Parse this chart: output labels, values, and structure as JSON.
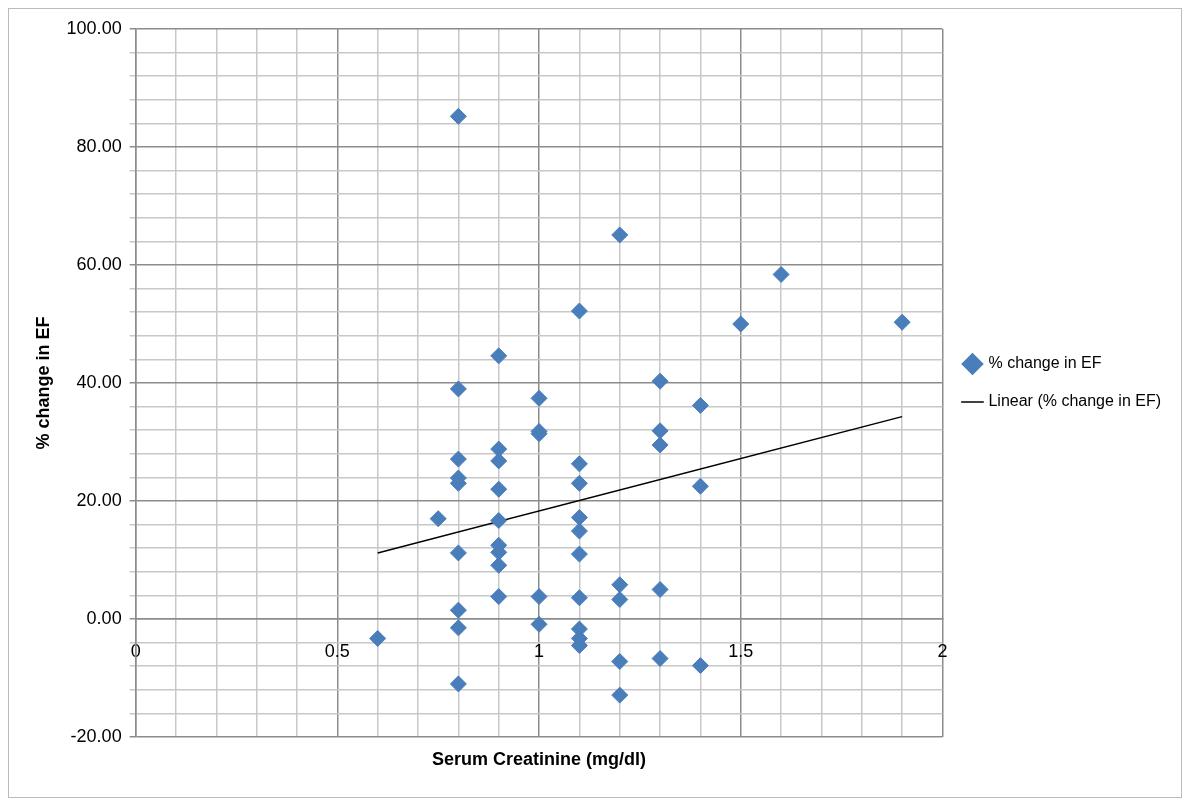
{
  "chart_data": {
    "type": "scatter",
    "xlabel": "Serum Creatinine (mg/dl)",
    "ylabel": "% change in EF",
    "xlim": [
      0,
      2
    ],
    "ylim": [
      -20,
      100
    ],
    "xticks": [
      0,
      {
        "value": 0.1,
        "label": null
      },
      {
        "value": 0.2,
        "label": null
      },
      {
        "value": 0.3,
        "label": null
      },
      {
        "value": 0.4,
        "label": null
      },
      0.5,
      {
        "value": 0.6,
        "label": null
      },
      {
        "value": 0.7,
        "label": null
      },
      {
        "value": 0.8,
        "label": null
      },
      {
        "value": 0.9,
        "label": null
      },
      1,
      {
        "value": 1.1,
        "label": null
      },
      {
        "value": 1.2,
        "label": null
      },
      {
        "value": 1.3,
        "label": null
      },
      {
        "value": 1.4,
        "label": null
      },
      1.5,
      {
        "value": 1.6,
        "label": null
      },
      {
        "value": 1.7,
        "label": null
      },
      {
        "value": 1.8,
        "label": null
      },
      {
        "value": 1.9,
        "label": null
      },
      2
    ],
    "yticks": [
      {
        "value": -20,
        "label": "-20.00"
      },
      {
        "value": -16,
        "label": null
      },
      {
        "value": -12,
        "label": null
      },
      {
        "value": -8,
        "label": null
      },
      {
        "value": -4,
        "label": null
      },
      {
        "value": 0,
        "label": "0.00"
      },
      {
        "value": 4,
        "label": null
      },
      {
        "value": 8,
        "label": null
      },
      {
        "value": 12,
        "label": null
      },
      {
        "value": 16,
        "label": null
      },
      {
        "value": 20,
        "label": "20.00"
      },
      {
        "value": 24,
        "label": null
      },
      {
        "value": 28,
        "label": null
      },
      {
        "value": 32,
        "label": null
      },
      {
        "value": 36,
        "label": null
      },
      {
        "value": 40,
        "label": "40.00"
      },
      {
        "value": 44,
        "label": null
      },
      {
        "value": 48,
        "label": null
      },
      {
        "value": 52,
        "label": null
      },
      {
        "value": 56,
        "label": null
      },
      {
        "value": 60,
        "label": "60.00"
      },
      {
        "value": 64,
        "label": null
      },
      {
        "value": 68,
        "label": null
      },
      {
        "value": 72,
        "label": null
      },
      {
        "value": 76,
        "label": null
      },
      {
        "value": 80,
        "label": "80.00"
      },
      {
        "value": 84,
        "label": null
      },
      {
        "value": 88,
        "label": null
      },
      {
        "value": 92,
        "label": null
      },
      {
        "value": 96,
        "label": null
      },
      {
        "value": 100,
        "label": "100.00"
      }
    ],
    "grid": true,
    "legend": "right",
    "marker": "diamond",
    "series": [
      {
        "name": "% change in EF",
        "type": "scatter",
        "color": "#4a7ebb",
        "x": [
          0.8,
          0.8,
          0.8,
          0.8,
          0.8,
          0.8,
          0.8,
          0.8,
          0.8,
          0.9,
          0.9,
          0.9,
          0.9,
          0.9,
          0.9,
          0.9,
          0.9,
          0.9,
          0.75,
          0.6,
          1.0,
          1.0,
          1.0,
          1.0,
          1.0,
          1.1,
          1.1,
          1.1,
          1.1,
          1.1,
          1.1,
          1.1,
          1.1,
          1.1,
          1.1,
          1.2,
          1.2,
          1.2,
          1.2,
          1.2,
          1.3,
          1.3,
          1.3,
          1.3,
          1.3,
          1.4,
          1.4,
          1.4,
          1.5,
          1.6,
          1.9
        ],
        "values": [
          85.2,
          39.0,
          27.1,
          23.9,
          23.0,
          11.2,
          1.5,
          -1.5,
          -11.0,
          44.6,
          28.8,
          26.8,
          22.0,
          16.7,
          12.5,
          11.3,
          9.1,
          3.8,
          17.0,
          -3.3,
          37.4,
          31.8,
          31.4,
          3.8,
          -0.9,
          52.2,
          26.3,
          23.0,
          17.2,
          14.9,
          11.0,
          3.6,
          -1.7,
          -3.3,
          -4.5,
          65.1,
          5.8,
          3.3,
          -7.2,
          -12.9,
          40.3,
          31.9,
          29.5,
          5.0,
          -6.7,
          36.2,
          22.5,
          -7.9,
          50.0,
          58.4,
          50.3
        ]
      },
      {
        "name": "Linear (% change in EF)",
        "type": "line",
        "color": "#000000",
        "marker": "none",
        "x": [
          0.6,
          1.9
        ],
        "values": [
          11.2,
          34.3
        ]
      }
    ]
  }
}
